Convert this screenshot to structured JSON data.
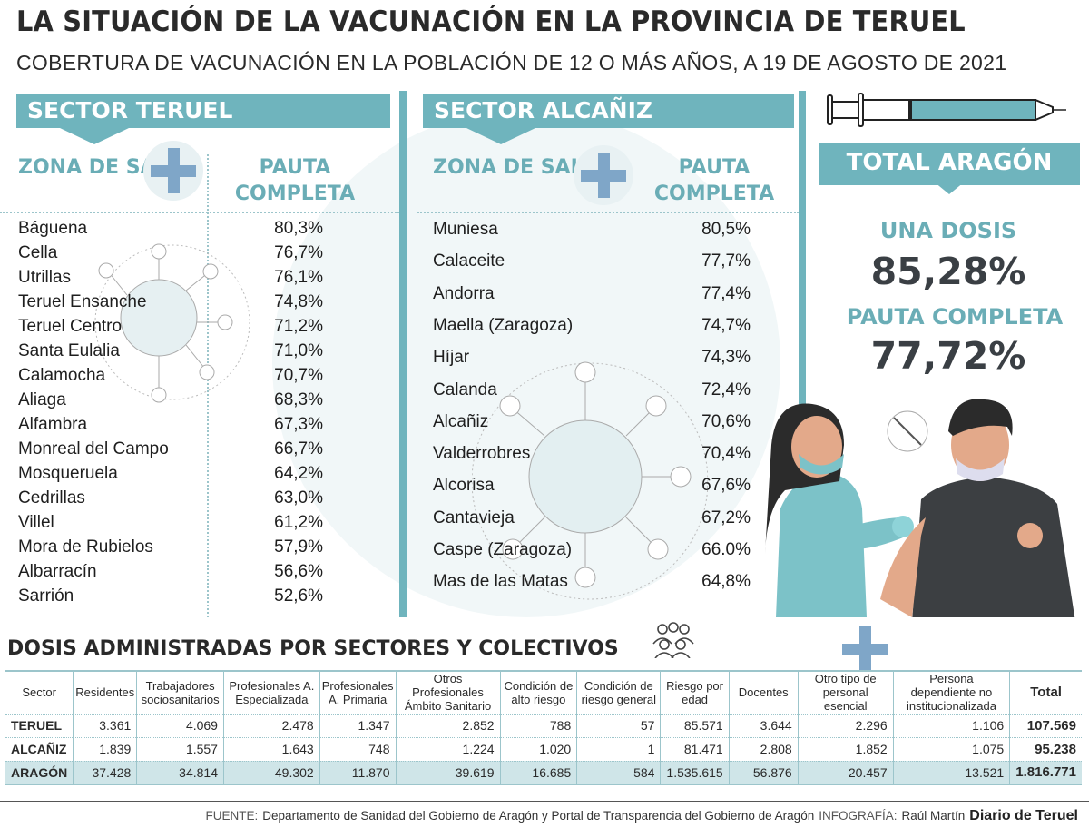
{
  "title": "LA SITUACIÓN DE LA VACUNACIÓN EN LA PROVINCIA DE TERUEL",
  "subtitle": "COBERTURA DE VACUNACIÓN EN LA POBLACIÓN DE 12 O MÁS AÑOS, A 19 DE AGOSTO DE 2021",
  "accent_color": "#6fb4bd",
  "teruel": {
    "header": "SECTOR TERUEL",
    "col1": "ZONA DE SALUD",
    "col2": "PAUTA COMPLETA",
    "rows": [
      [
        "Báguena",
        "80,3%"
      ],
      [
        "Cella",
        "76,7%"
      ],
      [
        "Utrillas",
        "76,1%"
      ],
      [
        "Teruel Ensanche",
        "74,8%"
      ],
      [
        "Teruel Centro",
        "71,2%"
      ],
      [
        "Santa Eulalia",
        "71,0%"
      ],
      [
        "Calamocha",
        "70,7%"
      ],
      [
        "Aliaga",
        "68,3%"
      ],
      [
        "Alfambra",
        "67,3%"
      ],
      [
        "Monreal del Campo",
        "66,7%"
      ],
      [
        "Mosqueruela",
        "64,2%"
      ],
      [
        "Cedrillas",
        "63,0%"
      ],
      [
        "Villel",
        "61,2%"
      ],
      [
        "Mora de Rubielos",
        "57,9%"
      ],
      [
        "Albarracín",
        "56,6%"
      ],
      [
        "Sarrión",
        "52,6%"
      ]
    ]
  },
  "alcaniz": {
    "header": "SECTOR ALCAÑIZ",
    "col1": "ZONA DE SALUD",
    "col2": "PAUTA COMPLETA",
    "rows": [
      [
        "Muniesa",
        "80,5%"
      ],
      [
        "Calaceite",
        "77,7%"
      ],
      [
        "Andorra",
        "77,4%"
      ],
      [
        "Maella (Zaragoza)",
        "74,7%"
      ],
      [
        "Híjar",
        "74,3%"
      ],
      [
        "Calanda",
        "72,4%"
      ],
      [
        "Alcañiz",
        "70,6%"
      ],
      [
        "Valderrobres",
        "70,4%"
      ],
      [
        "Alcorisa",
        "67,6%"
      ],
      [
        "Cantavieja",
        "67,2%"
      ],
      [
        "Caspe (Zaragoza)",
        "66.0%"
      ],
      [
        "Mas de las Matas",
        "64,8%"
      ]
    ]
  },
  "total": {
    "header": "TOTAL ARAGÓN",
    "una_label": "UNA DOSIS",
    "una_value": "85,28%",
    "pauta_label": "PAUTA COMPLETA",
    "pauta_value": "77,72%"
  },
  "dosis": {
    "title": "DOSIS ADMINISTRADAS POR SECTORES Y COLECTIVOS",
    "headers": [
      "Sector",
      "Residentes",
      "Trabajadores sociosanitarios",
      "Profesionales A. Especializada",
      "Profesionales A. Primaria",
      "Otros Profesionales Ámbito Sanitario",
      "Condición de alto riesgo",
      "Condición de riesgo general",
      "Riesgo por edad",
      "Docentes",
      "Otro tipo de personal esencial",
      "Persona dependiente no institucionalizada",
      "Total"
    ],
    "rows": [
      [
        "TERUEL",
        "3.361",
        "4.069",
        "2.478",
        "1.347",
        "2.852",
        "788",
        "57",
        "85.571",
        "3.644",
        "2.296",
        "1.106",
        "107.569"
      ],
      [
        "ALCAÑIZ",
        "1.839",
        "1.557",
        "1.643",
        "748",
        "1.224",
        "1.020",
        "1",
        "81.471",
        "2.808",
        "1.852",
        "1.075",
        "95.238"
      ],
      [
        "ARAGÓN",
        "37.428",
        "34.814",
        "49.302",
        "11.870",
        "39.619",
        "16.685",
        "584",
        "1.535.615",
        "56.876",
        "20.457",
        "13.521",
        "1.816.771"
      ]
    ]
  },
  "footer": {
    "source_label": "FUENTE:",
    "source": "Departamento de Sanidad del Gobierno de Aragón y Portal de Transparencia del Gobierno de Aragón",
    "credit_label": "INFOGRAFÍA:",
    "credit": "Raúl Martín",
    "logo": "Diario de Teruel"
  }
}
